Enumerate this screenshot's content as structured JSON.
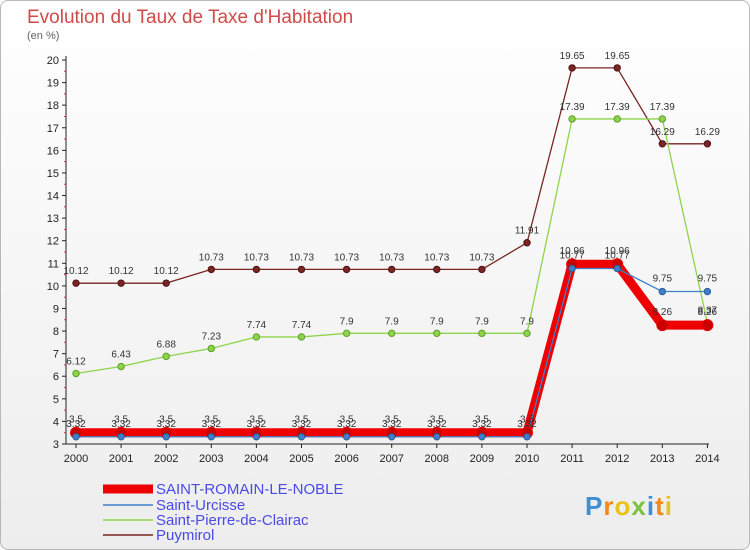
{
  "page": {
    "title": "Evolution du Taux de Taxe d'Habitation",
    "subtitle": "(en %)",
    "logo": "Proxiti"
  },
  "chart_data": {
    "type": "line",
    "title": "Evolution du Taux de Taxe d'Habitation",
    "ylabel": "(en %)",
    "xlabel": "",
    "x": [
      2000,
      2001,
      2002,
      2003,
      2004,
      2005,
      2006,
      2007,
      2008,
      2009,
      2010,
      2011,
      2012,
      2013,
      2014
    ],
    "ylim": [
      3,
      20
    ],
    "yticks": [
      3,
      4,
      5,
      6,
      7,
      8,
      9,
      10,
      11,
      12,
      13,
      14,
      15,
      16,
      17,
      18,
      19,
      20
    ],
    "grid": false,
    "legend_position": "bottom-left",
    "series": [
      {
        "name": "SAINT-ROMAIN-LE-NOBLE",
        "color": "#ee0000",
        "values": [
          3.5,
          3.5,
          3.5,
          3.5,
          3.5,
          3.5,
          3.5,
          3.5,
          3.5,
          3.5,
          3.5,
          10.96,
          10.96,
          8.26,
          8.26
        ],
        "labels": [
          "3.5",
          "3.5",
          "3.5",
          "3.5",
          "3.5",
          "3.5",
          "3.5",
          "3.5",
          "3.5",
          "3.5",
          "3.5",
          "10.96",
          "10.96",
          "8.26",
          "8.26"
        ]
      },
      {
        "name": "Saint-Urcisse",
        "color": "#3d7fc9",
        "values": [
          3.32,
          3.32,
          3.32,
          3.32,
          3.32,
          3.32,
          3.32,
          3.32,
          3.32,
          3.32,
          3.32,
          10.77,
          10.77,
          9.75,
          9.75
        ],
        "labels": [
          "3.32",
          "3.32",
          "3.32",
          "3.32",
          "3.32",
          "3.32",
          "3.32",
          "3.32",
          "3.32",
          "3.32",
          "3.32",
          "10.77",
          "10.77",
          "9.75",
          "9.75"
        ]
      },
      {
        "name": "Saint-Pierre-de-Clairac",
        "color": "#8ed44a",
        "values": [
          6.12,
          6.43,
          6.88,
          7.23,
          7.74,
          7.74,
          7.9,
          7.9,
          7.9,
          7.9,
          7.9,
          17.39,
          17.39,
          17.39,
          8.37
        ],
        "labels": [
          "6.12",
          "6.43",
          "6.88",
          "7.23",
          "7.74",
          "7.74",
          "7.9",
          "7.9",
          "7.9",
          "7.9",
          "7.9",
          "17.39",
          "17.39",
          "17.39",
          "8.37"
        ]
      },
      {
        "name": "Puymirol",
        "color": "#7a2424",
        "values": [
          10.12,
          10.12,
          10.12,
          10.73,
          10.73,
          10.73,
          10.73,
          10.73,
          10.73,
          10.73,
          11.91,
          19.65,
          19.65,
          16.29,
          16.29
        ],
        "labels": [
          "10.12",
          "10.12",
          "10.12",
          "10.73",
          "10.73",
          "10.73",
          "10.73",
          "10.73",
          "10.73",
          "10.73",
          "11.91",
          "19.65",
          "19.65",
          "16.29",
          "16.29"
        ]
      }
    ]
  }
}
